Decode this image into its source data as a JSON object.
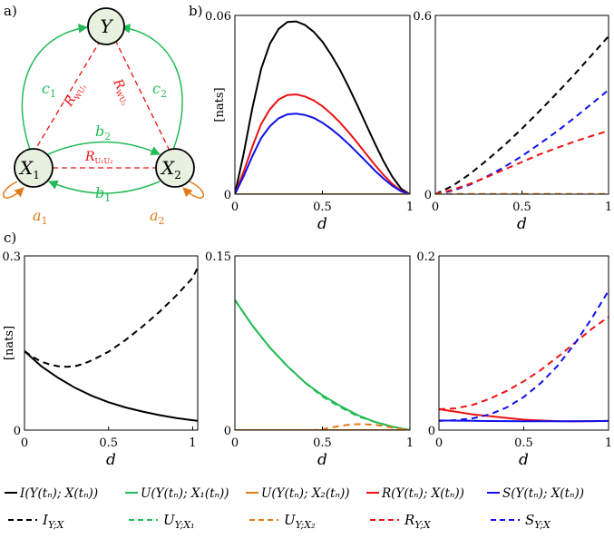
{
  "labels": {
    "a": "a)",
    "b": "b)",
    "c": "c)"
  },
  "diagram": {
    "nodes": {
      "Y": "Y",
      "X1": "X",
      "X1_sub": "1",
      "X2": "X",
      "X2_sub": "2"
    },
    "edges": {
      "c1": "c",
      "c1_sub": "1",
      "c2": "c",
      "c2_sub": "2",
      "b1": "b",
      "b1_sub": "1",
      "b2": "b",
      "b2_sub": "2",
      "a1": "a",
      "a1_sub": "1",
      "a2": "a",
      "a2_sub": "2",
      "R_WU1": "R",
      "R_WU1_sub": "WU₁",
      "R_WU2": "R",
      "R_WU2_sub": "WU₂",
      "R_U1U2": "R",
      "R_U1U2_sub": "U₁U₂"
    }
  },
  "colors": {
    "black": "#000000",
    "green": "#22bb55",
    "orange": "#e07b1a",
    "red": "#ee1111",
    "blue": "#1111ee",
    "node_fill": "#e8f0e0"
  },
  "legend": [
    {
      "key": "I_full",
      "text": "I(Y(tₙ); X(tₙ))",
      "color": "#000000",
      "dash": false
    },
    {
      "key": "U1_full",
      "text": "U(Y(tₙ); X₁(tₙ))",
      "color": "#22bb55",
      "dash": false
    },
    {
      "key": "U2_full",
      "text": "U(Y(tₙ); X₂(tₙ))",
      "color": "#e07b1a",
      "dash": false
    },
    {
      "key": "R_full",
      "text": "R(Y(tₙ); X(tₙ))",
      "color": "#ee1111",
      "dash": false
    },
    {
      "key": "S_full",
      "text": "S(Y(tₙ); X(tₙ))",
      "color": "#1111ee",
      "dash": false
    },
    {
      "key": "I_red",
      "text": "I",
      "sub": "Y;X",
      "color": "#000000",
      "dash": true
    },
    {
      "key": "U1_red",
      "text": "U",
      "sub": "Y;X₁",
      "color": "#22bb55",
      "dash": true
    },
    {
      "key": "U2_red",
      "text": "U",
      "sub": "Y;X₂",
      "color": "#e07b1a",
      "dash": true
    },
    {
      "key": "R_red",
      "text": "R",
      "sub": "Y;X",
      "color": "#ee1111",
      "dash": true
    },
    {
      "key": "S_red",
      "text": "S",
      "sub": "Y;X",
      "color": "#1111ee",
      "dash": true
    }
  ],
  "chart_data": [
    {
      "id": "b-left",
      "type": "line",
      "xlabel": "d",
      "ylabel": "[nats]",
      "xlim": [
        0,
        1
      ],
      "ylim": [
        0,
        0.06
      ],
      "xticks": [
        "0",
        "0.5",
        "1"
      ],
      "yticks": [
        "0",
        "0.06"
      ],
      "series": [
        {
          "name": "I(Y(tn); X(tn))",
          "color": "#000000",
          "dash": false,
          "x": [
            0,
            0.05,
            0.1,
            0.15,
            0.2,
            0.25,
            0.3,
            0.35,
            0.4,
            0.45,
            0.5,
            0.55,
            0.6,
            0.65,
            0.7,
            0.75,
            0.8,
            0.85,
            0.9,
            0.95,
            1
          ],
          "y": [
            0,
            0.0135,
            0.029,
            0.042,
            0.0505,
            0.0555,
            0.0578,
            0.058,
            0.0568,
            0.0545,
            0.0512,
            0.0468,
            0.0418,
            0.036,
            0.0298,
            0.0233,
            0.017,
            0.011,
            0.0058,
            0.0018,
            0
          ]
        },
        {
          "name": "R(Y(tn); X(tn))",
          "color": "#ee1111",
          "dash": false,
          "x": [
            0,
            0.05,
            0.1,
            0.15,
            0.2,
            0.25,
            0.3,
            0.35,
            0.4,
            0.45,
            0.5,
            0.55,
            0.6,
            0.65,
            0.7,
            0.75,
            0.8,
            0.85,
            0.9,
            0.95,
            1
          ],
          "y": [
            0,
            0.0075,
            0.016,
            0.0235,
            0.0285,
            0.0318,
            0.0333,
            0.0335,
            0.0328,
            0.0315,
            0.0295,
            0.027,
            0.0241,
            0.0208,
            0.0172,
            0.0135,
            0.0098,
            0.0064,
            0.0034,
            0.0011,
            0
          ]
        },
        {
          "name": "S(Y(tn); X(tn))",
          "color": "#1111ee",
          "dash": false,
          "x": [
            0,
            0.05,
            0.1,
            0.15,
            0.2,
            0.25,
            0.3,
            0.35,
            0.4,
            0.45,
            0.5,
            0.55,
            0.6,
            0.65,
            0.7,
            0.75,
            0.8,
            0.85,
            0.9,
            0.95,
            1
          ],
          "y": [
            0,
            0.006,
            0.0128,
            0.0188,
            0.0228,
            0.0255,
            0.0268,
            0.027,
            0.0266,
            0.0256,
            0.024,
            0.0219,
            0.0195,
            0.0168,
            0.0139,
            0.0109,
            0.0079,
            0.0052,
            0.0028,
            0.0009,
            0
          ]
        },
        {
          "name": "U(Y(tn); X1(tn))",
          "color": "#22bb55",
          "dash": false,
          "x": [
            0,
            1
          ],
          "y": [
            0,
            0
          ]
        },
        {
          "name": "U(Y(tn); X2(tn))",
          "color": "#e07b1a",
          "dash": false,
          "x": [
            0,
            1
          ],
          "y": [
            0,
            0
          ]
        }
      ]
    },
    {
      "id": "b-right",
      "type": "line",
      "xlabel": "d",
      "ylabel": "",
      "xlim": [
        0,
        1
      ],
      "ylim": [
        0,
        0.6
      ],
      "xticks": [
        "0",
        "0.5",
        "1"
      ],
      "yticks": [
        "0",
        "0.6"
      ],
      "series": [
        {
          "name": "I_Y;X",
          "color": "#000000",
          "dash": true,
          "x": [
            0,
            0.1,
            0.2,
            0.3,
            0.4,
            0.5,
            0.6,
            0.7,
            0.8,
            0.9,
            1
          ],
          "y": [
            0,
            0.028,
            0.068,
            0.115,
            0.165,
            0.22,
            0.278,
            0.338,
            0.4,
            0.465,
            0.53
          ]
        },
        {
          "name": "S_Y;X",
          "color": "#1111ee",
          "dash": true,
          "x": [
            0,
            0.1,
            0.2,
            0.3,
            0.4,
            0.5,
            0.6,
            0.7,
            0.8,
            0.9,
            1
          ],
          "y": [
            0,
            0.012,
            0.032,
            0.06,
            0.092,
            0.128,
            0.168,
            0.21,
            0.255,
            0.302,
            0.35
          ]
        },
        {
          "name": "R_Y;X",
          "color": "#ee1111",
          "dash": true,
          "x": [
            0,
            0.1,
            0.2,
            0.3,
            0.4,
            0.5,
            0.6,
            0.7,
            0.8,
            0.9,
            1
          ],
          "y": [
            0,
            0.015,
            0.035,
            0.058,
            0.083,
            0.108,
            0.133,
            0.155,
            0.176,
            0.195,
            0.213
          ]
        },
        {
          "name": "U_Y;X1",
          "color": "#22bb55",
          "dash": true,
          "x": [
            0,
            1
          ],
          "y": [
            0,
            0
          ]
        },
        {
          "name": "U_Y;X2",
          "color": "#e07b1a",
          "dash": true,
          "x": [
            0,
            1
          ],
          "y": [
            0.001,
            0.001
          ]
        }
      ]
    },
    {
      "id": "c-left",
      "type": "line",
      "xlabel": "d",
      "ylabel": "[nats]",
      "xlim": [
        0,
        1.03
      ],
      "ylim": [
        0,
        0.3
      ],
      "xticks": [
        "0",
        "0.5",
        "1"
      ],
      "yticks": [
        "0",
        "0.3"
      ],
      "series": [
        {
          "name": "I(Y(tn); X(tn))",
          "color": "#000000",
          "dash": false,
          "x": [
            0,
            0.1,
            0.2,
            0.3,
            0.4,
            0.5,
            0.6,
            0.7,
            0.8,
            0.9,
            1,
            1.03
          ],
          "y": [
            0.136,
            0.11,
            0.09,
            0.073,
            0.059,
            0.048,
            0.039,
            0.032,
            0.026,
            0.021,
            0.017,
            0.016
          ]
        },
        {
          "name": "I_Y;X",
          "color": "#000000",
          "dash": true,
          "x": [
            0,
            0.05,
            0.1,
            0.15,
            0.2,
            0.25,
            0.3,
            0.35,
            0.4,
            0.5,
            0.6,
            0.7,
            0.8,
            0.9,
            1,
            1.03
          ],
          "y": [
            0.136,
            0.126,
            0.118,
            0.113,
            0.11,
            0.109,
            0.11,
            0.114,
            0.12,
            0.135,
            0.155,
            0.178,
            0.203,
            0.231,
            0.262,
            0.28
          ]
        }
      ]
    },
    {
      "id": "c-middle",
      "type": "line",
      "xlabel": "d",
      "ylabel": "",
      "xlim": [
        0,
        1
      ],
      "ylim": [
        0,
        0.15
      ],
      "xticks": [
        "0",
        "0.5",
        "1"
      ],
      "yticks": [
        "0",
        "0.15"
      ],
      "series": [
        {
          "name": "U(Y(tn); X1(tn))",
          "color": "#22bb55",
          "dash": false,
          "x": [
            0,
            0.1,
            0.2,
            0.3,
            0.4,
            0.5,
            0.6,
            0.7,
            0.8,
            0.9,
            1
          ],
          "y": [
            0.112,
            0.09,
            0.071,
            0.055,
            0.041,
            0.03,
            0.021,
            0.013,
            0.007,
            0.003,
            0
          ]
        },
        {
          "name": "U_Y;X1",
          "color": "#22bb55",
          "dash": true,
          "x": [
            0,
            0.1,
            0.2,
            0.3,
            0.4,
            0.5,
            0.6,
            0.7,
            0.8,
            0.9,
            1
          ],
          "y": [
            0.112,
            0.09,
            0.071,
            0.055,
            0.041,
            0.029,
            0.02,
            0.012,
            0.007,
            0.003,
            0
          ]
        },
        {
          "name": "U(Y(tn); X2(tn))",
          "color": "#e07b1a",
          "dash": false,
          "x": [
            0,
            1
          ],
          "y": [
            0,
            0
          ]
        },
        {
          "name": "U_Y;X2",
          "color": "#e07b1a",
          "dash": true,
          "x": [
            0,
            0.45,
            0.5,
            0.55,
            0.6,
            0.65,
            0.7,
            0.75,
            0.8,
            0.85,
            0.9,
            0.95,
            1
          ],
          "y": [
            0,
            0,
            0.0008,
            0.0022,
            0.0036,
            0.0046,
            0.0051,
            0.005,
            0.0045,
            0.0035,
            0.0022,
            0.001,
            0
          ]
        }
      ]
    },
    {
      "id": "c-right",
      "type": "line",
      "xlabel": "d",
      "ylabel": "",
      "xlim": [
        0,
        1
      ],
      "ylim": [
        0,
        0.2
      ],
      "xticks": [
        "0",
        "0.5",
        "1"
      ],
      "yticks": [
        "0",
        "0.2"
      ],
      "series": [
        {
          "name": "R(Y(tn); X(tn))",
          "color": "#ee1111",
          "dash": false,
          "x": [
            0,
            0.1,
            0.2,
            0.3,
            0.4,
            0.5,
            0.6,
            0.7,
            0.8,
            0.9,
            1
          ],
          "y": [
            0.024,
            0.021,
            0.018,
            0.016,
            0.014,
            0.012,
            0.011,
            0.0103,
            0.0102,
            0.0103,
            0.0105
          ]
        },
        {
          "name": "S(Y(tn); X(tn))",
          "color": "#1111ee",
          "dash": false,
          "x": [
            0,
            0.1,
            0.2,
            0.3,
            0.4,
            0.5,
            0.6,
            0.7,
            0.8,
            0.9,
            1
          ],
          "y": [
            0.011,
            0.0108,
            0.0106,
            0.0104,
            0.0103,
            0.0102,
            0.0101,
            0.0101,
            0.0102,
            0.0103,
            0.0105
          ]
        },
        {
          "name": "R_Y;X",
          "color": "#ee1111",
          "dash": true,
          "x": [
            0,
            0.1,
            0.2,
            0.3,
            0.4,
            0.5,
            0.6,
            0.7,
            0.8,
            0.9,
            1
          ],
          "y": [
            0.024,
            0.025,
            0.029,
            0.036,
            0.045,
            0.056,
            0.069,
            0.084,
            0.1,
            0.116,
            0.13
          ]
        },
        {
          "name": "S_Y;X",
          "color": "#1111ee",
          "dash": true,
          "x": [
            0,
            0.1,
            0.2,
            0.3,
            0.4,
            0.5,
            0.6,
            0.7,
            0.8,
            0.9,
            1
          ],
          "y": [
            0.0105,
            0.0115,
            0.0135,
            0.018,
            0.026,
            0.038,
            0.054,
            0.074,
            0.099,
            0.128,
            0.16
          ]
        }
      ]
    }
  ]
}
